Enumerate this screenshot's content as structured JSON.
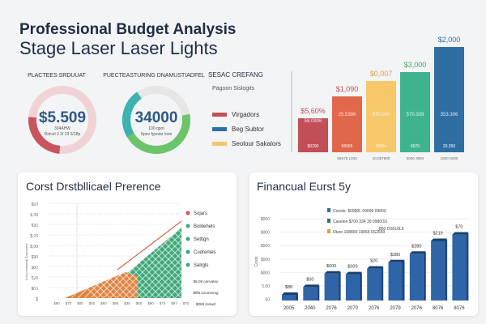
{
  "header": {
    "title": "Professional Budget Analysis",
    "subtitle": "Stage Laser Laser Lights"
  },
  "donut1": {
    "label": "PLACTEES SRDUUAT",
    "value": "$5.509",
    "line1": "304AHW",
    "line2": "Rolcel 2 3/ 23 3/18p",
    "colors": [
      "#c9545d",
      "#f1d3d6"
    ]
  },
  "donut2": {
    "label": "PUECTEASTURING DNAMUSTIADFEL",
    "value": "34000",
    "line1": "100 qpot",
    "line2": "Spev fypoiar lone",
    "colors": [
      "#3bb3b0",
      "#6cc56a",
      "#e6e6e6"
    ]
  },
  "legend_top": {
    "title": "SESAC CREFANG",
    "subtitle": "Pagoon Sislogits",
    "items": [
      {
        "label": "Virgadors",
        "color": "#c24e57"
      },
      {
        "label": "Beg Subtor",
        "color": "#2f6ea3"
      },
      {
        "label": "Seolour Sakalors",
        "color": "#f4c66a"
      }
    ]
  },
  "chart_data": [
    {
      "type": "bar",
      "title": "",
      "categories": [
        "",
        "56S75 L033",
        "10.05T600",
        "5036 3094",
        "1930 S030"
      ],
      "values": [
        42,
        69,
        88,
        99,
        130
      ],
      "top_labels": [
        "$5,60%",
        "$1,090",
        "$0,007",
        "$3,000",
        "$2,000"
      ],
      "inner_labels": [
        "58.0906",
        "25.5306",
        "570.000",
        "570.309",
        "353.306"
      ],
      "bottom_labels": [
        "$0290",
        "56565",
        "655%",
        "6076",
        "20.350"
      ],
      "colors": [
        "#c24e57",
        "#e0674a",
        "#f6c86a",
        "#3fb38e",
        "#2f6ea3"
      ],
      "label_colors": [
        "#c24e57",
        "#c24e57",
        "#e0a040",
        "#3fa860",
        "#2f6ea3"
      ]
    },
    {
      "type": "area",
      "title": "Corst Drstbllicael Prerence",
      "yticks": [
        "$90",
        "$,90",
        "$30",
        "$,90",
        "$,00",
        "$30",
        "$00",
        "$20",
        "$00",
        "$"
      ],
      "xticks": [
        "$90",
        "$70",
        "$00",
        "$50",
        "$60",
        "$95",
        "$35",
        "$50",
        "$90",
        "$70",
        "$97",
        "$70"
      ],
      "ylabel": "Bolccebarzedt Sowonone",
      "legend": [
        {
          "label": "Sojars",
          "color": "#d9534f"
        },
        {
          "label": "Boldehels",
          "color": "#3fa878"
        },
        {
          "label": "Settign",
          "color": "#3fa878"
        },
        {
          "label": "Cudrentes",
          "color": "#3fa878"
        },
        {
          "label": "Salrgls",
          "color": "#3fa878"
        }
      ],
      "notes": [
        "$5.09 canvatey",
        "$tffa soommmg",
        "$069 zeswd"
      ],
      "series": [
        {
          "values": [
            0,
            45
          ]
        },
        {
          "values": [
            0,
            85
          ]
        }
      ]
    },
    {
      "type": "bar",
      "title": "Financual Eurst 5y",
      "ylabel": "Costs",
      "categories": [
        "2005",
        "2040",
        "2076",
        "2070",
        "2076",
        "2079",
        "2076",
        "8076",
        "8076"
      ],
      "values": [
        8,
        19,
        38,
        37,
        45,
        54,
        66,
        84,
        93
      ],
      "value_labels": [
        "$88",
        "$00",
        "$600",
        "$000",
        "$20",
        "$380",
        "$280",
        "$219",
        "$70"
      ],
      "yticks": [
        "$000",
        "$000",
        "$000",
        "$000",
        "$000",
        "5.00",
        "50"
      ],
      "ylim": [
        0,
        120
      ],
      "legend": [
        {
          "label": "Coosts:  $09$0t.   09096 09800",
          "color": "#2f6ea3"
        },
        {
          "label": "Caselen  $700   334 30 0980/10",
          "color": "#2a7a5a"
        },
        {
          "label": "Otsor   108800   19065 6S2550",
          "color": "#e0a040"
        }
      ],
      "legend_extra": "850 DS0L0L5",
      "color": "#2e65a8"
    }
  ]
}
